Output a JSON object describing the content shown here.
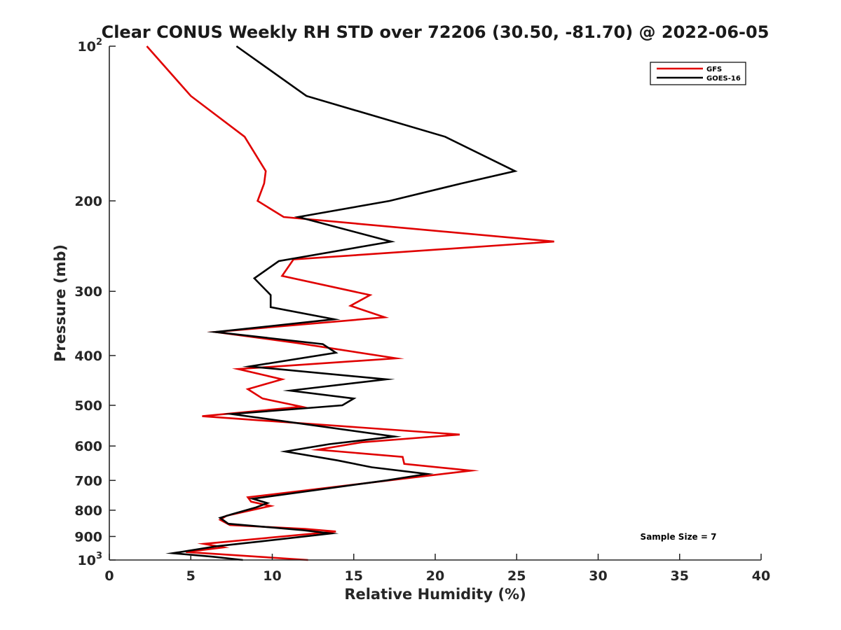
{
  "chart_data": {
    "type": "line",
    "title": "Clear CONUS Weekly RH STD over 72206 (30.50, -81.70) @ 2022-06-05",
    "xlabel": "Relative Humidity (%)",
    "ylabel": "Pressure (mb)",
    "xlim": [
      0,
      40
    ],
    "ylim": [
      100,
      1000
    ],
    "y_scale": "log",
    "y_reversed": true,
    "x_ticks": [
      0,
      5,
      10,
      15,
      20,
      25,
      30,
      35,
      40
    ],
    "y_ticks": [
      {
        "value": 100,
        "base": "10",
        "exp": "2"
      },
      {
        "value": 200,
        "label": "200"
      },
      {
        "value": 300,
        "label": "300"
      },
      {
        "value": 400,
        "label": "400"
      },
      {
        "value": 500,
        "label": "500"
      },
      {
        "value": 600,
        "label": "600"
      },
      {
        "value": 700,
        "label": "700"
      },
      {
        "value": 800,
        "label": "800"
      },
      {
        "value": 900,
        "label": "900"
      },
      {
        "value": 1000,
        "base": "10",
        "exp": "3"
      }
    ],
    "grid": false,
    "legend_position": "top-right",
    "annotation": "Sample Size = 7",
    "series": [
      {
        "name": "GFS",
        "color": "#e00000",
        "points": [
          [
            2.3,
            100
          ],
          [
            5.0,
            125
          ],
          [
            8.3,
            150
          ],
          [
            9.6,
            175
          ],
          [
            9.5,
            185
          ],
          [
            9.1,
            200
          ],
          [
            10.7,
            215
          ],
          [
            27.3,
            240
          ],
          [
            11.3,
            260
          ],
          [
            10.6,
            280
          ],
          [
            16.0,
            305
          ],
          [
            14.8,
            320
          ],
          [
            16.9,
            337
          ],
          [
            6.5,
            360
          ],
          [
            11.5,
            378
          ],
          [
            17.6,
            405
          ],
          [
            7.9,
            425
          ],
          [
            10.6,
            445
          ],
          [
            8.5,
            465
          ],
          [
            9.4,
            485
          ],
          [
            11.8,
            503
          ],
          [
            5.7,
            525
          ],
          [
            21.5,
            570
          ],
          [
            15.5,
            590
          ],
          [
            12.8,
            610
          ],
          [
            18.0,
            630
          ],
          [
            18.1,
            650
          ],
          [
            22.2,
            670
          ],
          [
            8.5,
            755
          ],
          [
            8.7,
            770
          ],
          [
            9.9,
            785
          ],
          [
            7.2,
            820
          ],
          [
            6.8,
            835
          ],
          [
            7.4,
            855
          ],
          [
            12.0,
            870
          ],
          [
            13.9,
            880
          ],
          [
            5.8,
            930
          ],
          [
            7.0,
            945
          ],
          [
            4.7,
            965
          ],
          [
            12.2,
            1000
          ]
        ]
      },
      {
        "name": "GOES-16",
        "color": "#000000",
        "points": [
          [
            7.8,
            100
          ],
          [
            12.1,
            125
          ],
          [
            20.6,
            150
          ],
          [
            24.9,
            175
          ],
          [
            21.6,
            185
          ],
          [
            17.2,
            200
          ],
          [
            11.6,
            215
          ],
          [
            17.3,
            240
          ],
          [
            10.4,
            262
          ],
          [
            8.9,
            283
          ],
          [
            9.9,
            305
          ],
          [
            9.9,
            322
          ],
          [
            13.8,
            340
          ],
          [
            6.5,
            360
          ],
          [
            13.1,
            380
          ],
          [
            13.9,
            395
          ],
          [
            8.6,
            420
          ],
          [
            17.0,
            445
          ],
          [
            11.1,
            468
          ],
          [
            15.0,
            485
          ],
          [
            14.3,
            500
          ],
          [
            7.5,
            520
          ],
          [
            17.5,
            575
          ],
          [
            13.5,
            595
          ],
          [
            10.8,
            615
          ],
          [
            14.0,
            640
          ],
          [
            16.1,
            660
          ],
          [
            19.5,
            680
          ],
          [
            17.0,
            700
          ],
          [
            8.8,
            760
          ],
          [
            9.7,
            775
          ],
          [
            9.0,
            790
          ],
          [
            7.5,
            815
          ],
          [
            6.8,
            828
          ],
          [
            7.3,
            850
          ],
          [
            11.9,
            875
          ],
          [
            13.6,
            888
          ],
          [
            9.3,
            920
          ],
          [
            6.6,
            940
          ],
          [
            3.9,
            970
          ],
          [
            6.3,
            985
          ],
          [
            8.2,
            1000
          ]
        ]
      }
    ]
  }
}
